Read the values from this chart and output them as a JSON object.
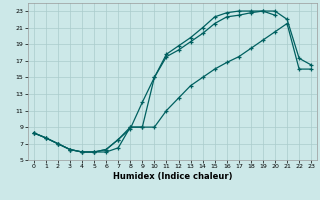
{
  "xlabel": "Humidex (Indice chaleur)",
  "bg_color": "#cce8e8",
  "line_color": "#006060",
  "grid_color": "#aacccc",
  "xlim": [
    -0.5,
    23.5
  ],
  "ylim": [
    5,
    24
  ],
  "xticks": [
    0,
    1,
    2,
    3,
    4,
    5,
    6,
    7,
    8,
    9,
    10,
    11,
    12,
    13,
    14,
    15,
    16,
    17,
    18,
    19,
    20,
    21,
    22,
    23
  ],
  "yticks": [
    5,
    7,
    9,
    11,
    13,
    15,
    17,
    19,
    21,
    23
  ],
  "line1_x": [
    0,
    1,
    2,
    3,
    4,
    5,
    6,
    7,
    8,
    9,
    10,
    11,
    12,
    13,
    14,
    15,
    16,
    17,
    18,
    19,
    20,
    21,
    22,
    23
  ],
  "line1_y": [
    8.3,
    7.7,
    7.0,
    6.3,
    6.0,
    6.0,
    6.3,
    7.5,
    9.0,
    9.0,
    15.0,
    17.5,
    18.3,
    19.3,
    20.3,
    21.5,
    22.3,
    22.5,
    22.8,
    23.0,
    23.0,
    22.0,
    17.3,
    16.5
  ],
  "line2_x": [
    0,
    1,
    2,
    3,
    4,
    5,
    6,
    7,
    8,
    9,
    10,
    11,
    12,
    13,
    14,
    15,
    16,
    17,
    18,
    19,
    20
  ],
  "line2_y": [
    8.3,
    7.7,
    7.0,
    6.3,
    6.0,
    6.0,
    6.3,
    7.5,
    8.8,
    12.0,
    15.0,
    17.8,
    18.8,
    19.8,
    21.0,
    22.3,
    22.8,
    23.0,
    23.0,
    23.0,
    22.5
  ],
  "line3_x": [
    0,
    1,
    2,
    3,
    4,
    5,
    6,
    7,
    8,
    9,
    10,
    11,
    12,
    13,
    14,
    15,
    16,
    17,
    18,
    19,
    20,
    21,
    22,
    23
  ],
  "line3_y": [
    8.3,
    7.7,
    7.0,
    6.3,
    6.0,
    6.0,
    6.0,
    6.5,
    9.0,
    9.0,
    9.0,
    11.0,
    12.5,
    14.0,
    15.0,
    16.0,
    16.8,
    17.5,
    18.5,
    19.5,
    20.5,
    21.5,
    16.0,
    16.0
  ]
}
